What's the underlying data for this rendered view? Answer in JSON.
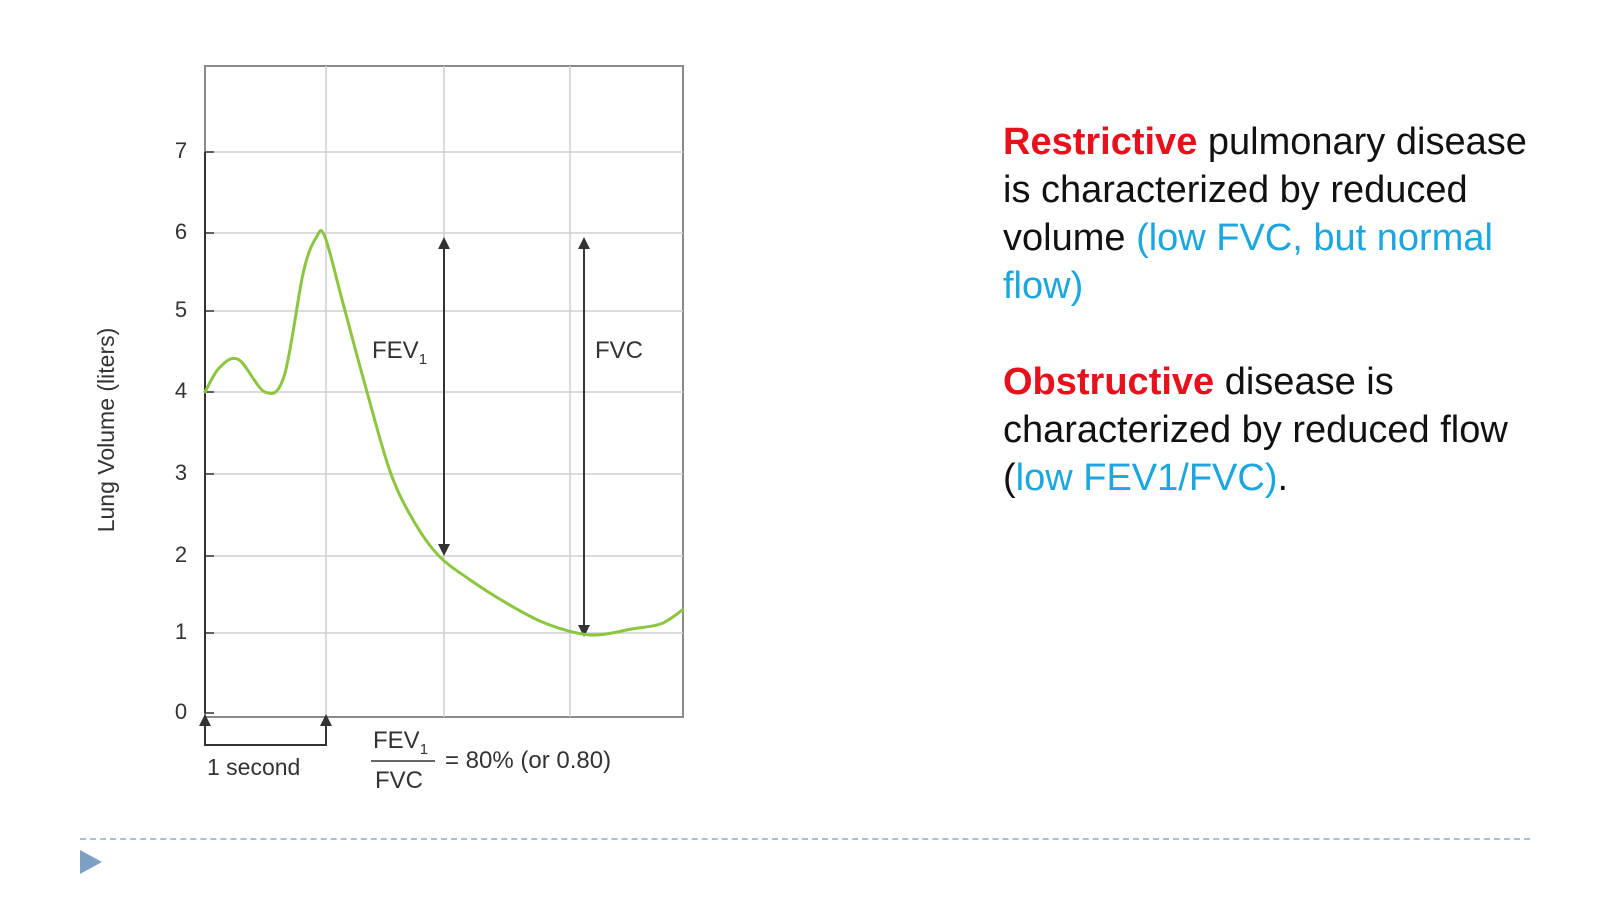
{
  "chart_data": {
    "type": "line",
    "ylabel": "Lung Volume (liters)",
    "xlabel": "",
    "ylim": [
      0,
      8
    ],
    "y_ticks": [
      "0",
      "1",
      "2",
      "3",
      "4",
      "5",
      "6",
      "7"
    ],
    "grid": true,
    "series": [
      {
        "color": "#8cc63f",
        "x": [
          0,
          0.12,
          0.28,
          0.5,
          0.66,
          0.82,
          0.93,
          1.0,
          1.15,
          1.35,
          1.55,
          1.75,
          1.95,
          2.2,
          2.5,
          2.8,
          3.1,
          3.3,
          3.55,
          3.8,
          3.98
        ],
        "y": [
          4.0,
          4.3,
          4.4,
          4.0,
          4.2,
          5.5,
          5.95,
          5.95,
          5.1,
          4.0,
          3.0,
          2.4,
          2.0,
          1.7,
          1.4,
          1.15,
          1.0,
          0.98,
          1.05,
          1.12,
          1.3
        ]
      }
    ],
    "annotations": {
      "fev1": {
        "base": "FEV",
        "sub": "1"
      },
      "fvc": "FVC",
      "one_second": "1 second",
      "ratio_numerator_base": "FEV",
      "ratio_numerator_sub": "1",
      "ratio_denominator": "FVC",
      "ratio_result": "= 80% (or 0.80)"
    }
  },
  "text_panel": {
    "restrictive": {
      "keyword": "Restrictive",
      "body": " pulmonary disease is characterized by reduced volume ",
      "highlight": "(low FVC, but normal flow)"
    },
    "obstructive": {
      "keyword": "Obstructive",
      "body": " disease is characterized by reduced flow (",
      "highlight": "low FEV1/FVC)",
      "end": "."
    }
  },
  "colors": {
    "curve": "#8cc63f",
    "keyword": "#e8101b",
    "highlight": "#1aa6df",
    "footer": "#7e9fc4"
  }
}
